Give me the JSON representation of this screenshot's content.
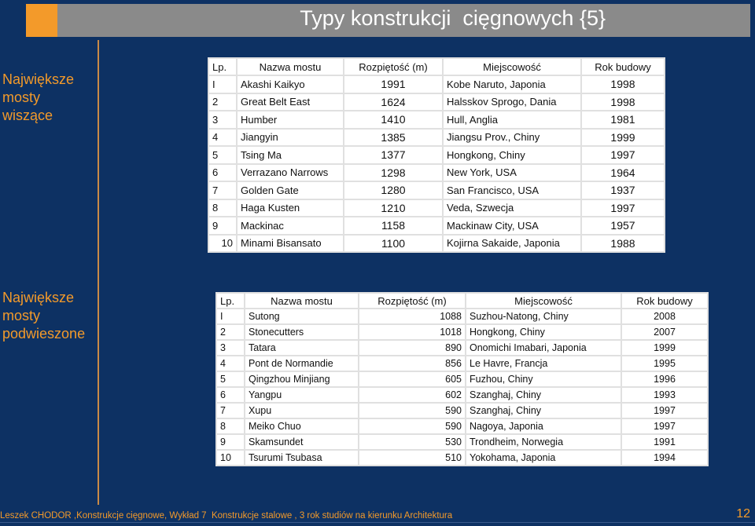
{
  "slide": {
    "title": "Typy konstrukcji  cięgnowych {5}",
    "footer": "Leszek CHODOR ,Konstrukcje cięgnowe, Wykład 7  Konstrukcje stalowe , 3 rok studiów na kierunku Architektura",
    "page_number": "12",
    "accent_color": "#f39a2a",
    "background_color": "#0d3163"
  },
  "section1": {
    "label_lines": [
      "Największe",
      "mosty",
      "wiszące"
    ],
    "headers": [
      "Lp.",
      "Nazwa mostu",
      "Rozpiętość (m)",
      "Miejscowość",
      "Rok budowy"
    ],
    "rows": [
      {
        "lp": "I",
        "name": "Akashi Kaikyo",
        "span": "1991",
        "place": "Kobe Naruto, Japonia",
        "year": "1998"
      },
      {
        "lp": "2",
        "name": "Great Belt East",
        "span": "1624",
        "place": "Halsskov Sprogo, Dania",
        "year": "1998"
      },
      {
        "lp": "3",
        "name": "Humber",
        "span": "1410",
        "place": "Hull, Anglia",
        "year": "1981"
      },
      {
        "lp": "4",
        "name": "Jiangyin",
        "span": "1385",
        "place": "Jiangsu Prov., Chiny",
        "year": "1999"
      },
      {
        "lp": "5",
        "name": "Tsing Ma",
        "span": "1377",
        "place": "Hongkong, Chiny",
        "year": "1997"
      },
      {
        "lp": "6",
        "name": "Verrazano Narrows",
        "span": "1298",
        "place": "New York, USA",
        "year": "1964"
      },
      {
        "lp": "7",
        "name": "Golden Gate",
        "span": "1280",
        "place": "San Francisco, USA",
        "year": "1937"
      },
      {
        "lp": "8",
        "name": "Haga Kusten",
        "span": "1210",
        "place": "Veda, Szwecja",
        "year": "1997"
      },
      {
        "lp": "9",
        "name": "Mackinac",
        "span": "1158",
        "place": "Mackinaw City, USA",
        "year": "1957"
      },
      {
        "lp": "10",
        "name": "Minami Bisansato",
        "span": "1100",
        "place": "Kojirna Sakaide, Japonia",
        "year": "1988"
      }
    ]
  },
  "section2": {
    "label_lines": [
      "Największe",
      "mosty",
      "podwieszone"
    ],
    "headers": [
      "Lp.",
      "Nazwa mostu",
      "Rozpiętość (m)",
      "Miejscowość",
      "Rok budowy"
    ],
    "rows": [
      {
        "lp": "I",
        "name": "Sutong",
        "span": "1088",
        "place": "Suzhou-Natong, Chiny",
        "year": "2008"
      },
      {
        "lp": "2",
        "name": "Stonecutters",
        "span": "1018",
        "place": "Hongkong, Chiny",
        "year": "2007"
      },
      {
        "lp": "3",
        "name": "Tatara",
        "span": "890",
        "place": "Onomichi Imabari, Japonia",
        "year": "1999"
      },
      {
        "lp": "4",
        "name": "Pont de Normandie",
        "span": "856",
        "place": "Le Havre, Francja",
        "year": "1995"
      },
      {
        "lp": "5",
        "name": "Qingzhou Minjiang",
        "span": "605",
        "place": "Fuzhou, Chiny",
        "year": "1996"
      },
      {
        "lp": "6",
        "name": "Yangpu",
        "span": "602",
        "place": "Szanghaj, Chiny",
        "year": "1993"
      },
      {
        "lp": "7",
        "name": "Xupu",
        "span": "590",
        "place": "Szanghaj, Chiny",
        "year": "1997"
      },
      {
        "lp": "8",
        "name": "Meiko Chuo",
        "span": "590",
        "place": "Nagoya, Japonia",
        "year": "1997"
      },
      {
        "lp": "9",
        "name": "Skamsundet",
        "span": "530",
        "place": "Trondheim, Norwegia",
        "year": "1991"
      },
      {
        "lp": "10",
        "name": "Tsurumi Tsubasa",
        "span": "510",
        "place": "Yokohama, Japonia",
        "year": "1994"
      }
    ]
  }
}
